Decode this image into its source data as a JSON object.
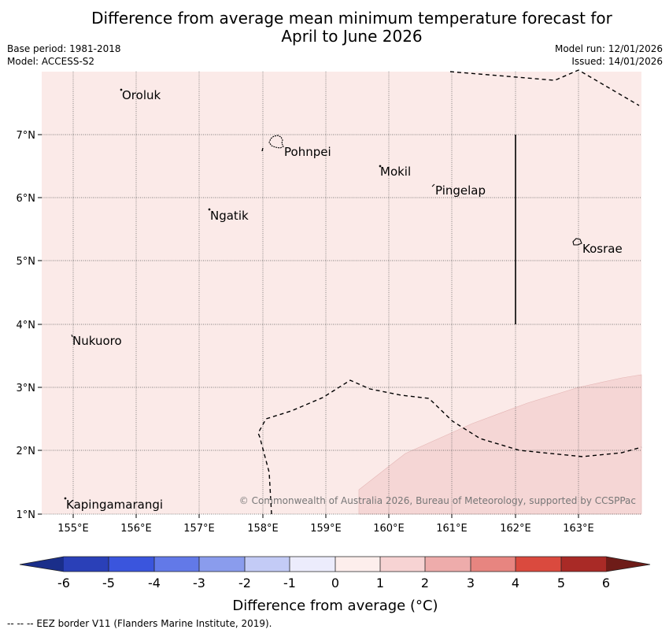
{
  "header": {
    "title_line1": "Difference from average mean minimum temperature forecast for",
    "title_line2": "April to June 2026",
    "base_period": "Base period: 1981-2018",
    "model": "Model: ACCESS-S2",
    "model_run": "Model run: 12/01/2026",
    "issued": "Issued: 14/01/2026"
  },
  "map": {
    "x_ticks": [
      "155°E",
      "156°E",
      "157°E",
      "158°E",
      "159°E",
      "160°E",
      "161°E",
      "162°E",
      "163°E"
    ],
    "y_ticks": [
      "7°N",
      "6°N",
      "5°N",
      "4°N",
      "3°N",
      "2°N",
      "1°N"
    ],
    "places": [
      {
        "name": "Oroluk"
      },
      {
        "name": "Pohnpei"
      },
      {
        "name": "Mokil"
      },
      {
        "name": "Pingelap"
      },
      {
        "name": "Ngatik"
      },
      {
        "name": "Kosrae"
      },
      {
        "name": "Nukuoro"
      },
      {
        "name": "Kapingamarangi"
      }
    ],
    "copyright": "© Commonwealth of Australia 2026, Bureau of Meteorology, supported by CCSPPac",
    "colors": {
      "background_fill": "#fbeae8",
      "anomaly_fill": "#f5d6d5"
    }
  },
  "legend": {
    "title": "Difference from average (°C)",
    "ticks": [
      "-6",
      "-5",
      "-4",
      "-3",
      "-2",
      "-1",
      "0",
      "1",
      "2",
      "3",
      "4",
      "5",
      "6"
    ],
    "colors": [
      "#1a2e8a",
      "#2a40b8",
      "#3a55dd",
      "#6279e8",
      "#8a9ced",
      "#c3cbf6",
      "#ececfc",
      "#fdeeec",
      "#f7d3d3",
      "#eeacab",
      "#e78580",
      "#da4a3e",
      "#a92a26",
      "#6e1c18"
    ]
  },
  "footer": {
    "eez_note": "--  --  -- EEZ border V11 (Flanders Marine Institute, 2019)."
  }
}
